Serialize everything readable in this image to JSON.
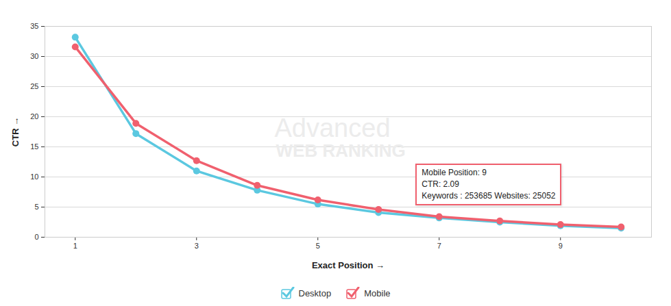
{
  "chart_data": {
    "type": "line",
    "x_label": "Exact Position",
    "y_label": "CTR",
    "x": [
      1,
      2,
      3,
      4,
      5,
      6,
      7,
      8,
      9,
      10
    ],
    "series": [
      {
        "name": "Desktop",
        "color": "#5bc8e0",
        "marker": "circle",
        "values": [
          33.2,
          17.2,
          11.0,
          7.8,
          5.5,
          4.1,
          3.2,
          2.5,
          1.9,
          1.5
        ]
      },
      {
        "name": "Mobile",
        "color": "#f0606e",
        "marker": "circle",
        "values": [
          31.6,
          18.9,
          12.7,
          8.6,
          6.2,
          4.6,
          3.4,
          2.7,
          2.09,
          1.7
        ]
      }
    ],
    "xlim": [
      0.5,
      10.5
    ],
    "xticks": [
      1,
      3,
      5,
      7,
      9
    ],
    "ylim": [
      0,
      35
    ],
    "yticks": [
      0,
      5,
      10,
      15,
      20,
      25,
      30,
      35
    ],
    "grid": true,
    "legend": "bottom",
    "watermark": [
      "Advanced",
      "WEB RANKING"
    ],
    "tooltip": {
      "series": "Mobile",
      "x": 9,
      "lines": [
        "Mobile Position: 9",
        "CTR: 2.09",
        "Keywords : 253685 Websites: 25052"
      ]
    }
  }
}
